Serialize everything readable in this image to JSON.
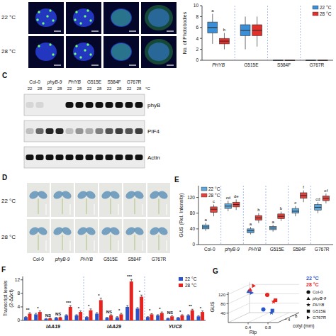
{
  "panel_a": {
    "row_labels": [
      "22 °C",
      "28 °C"
    ]
  },
  "panel_c": {
    "label": "C",
    "genotypes": [
      "Col-0",
      "phyB-9",
      "PHYB",
      "G515E",
      "S584F",
      "G767R"
    ],
    "temps": [
      "22",
      "28"
    ],
    "unit": "°C",
    "bands": [
      {
        "name": "phyB",
        "intensity": [
          0.1,
          0.1,
          0,
          0,
          1,
          1,
          1,
          1,
          1,
          1,
          1,
          1
        ]
      },
      {
        "name": "PIF4",
        "intensity": [
          0.2,
          0.6,
          0.9,
          0.9,
          0.2,
          0.4,
          0.3,
          0.5,
          0.7,
          0.8,
          0.7,
          0.8
        ]
      },
      {
        "name": "Actin",
        "intensity": [
          1,
          1,
          1,
          1,
          1,
          1,
          1,
          1,
          1,
          1,
          1,
          1
        ]
      }
    ]
  },
  "panel_d": {
    "label": "D",
    "row_labels": [
      "22 °C",
      "28 °C"
    ],
    "genotypes": [
      "Col-0",
      "phyB-9",
      "PHYB",
      "G515E",
      "S584F",
      "G767R"
    ]
  },
  "chart_data": [
    {
      "type": "box",
      "y_label": "No. of Photobodies",
      "categories": [
        "PHYB",
        "G515E",
        "S584F",
        "G767R"
      ],
      "series": [
        {
          "name": "22 °C",
          "color": "#3b8fd6",
          "values": [
            6,
            5.5,
            0,
            0
          ],
          "q1": [
            5,
            4.5,
            0,
            0
          ],
          "q3": [
            7,
            6.5,
            0,
            0
          ],
          "min": [
            3,
            2,
            0,
            0
          ],
          "max": [
            8.5,
            8,
            0,
            0
          ],
          "letters": [
            "a",
            null,
            null,
            null
          ]
        },
        {
          "name": "28 °C",
          "color": "#e0302c",
          "values": [
            3.5,
            5.5,
            0,
            0
          ],
          "q1": [
            3,
            4.5,
            0,
            0
          ],
          "q3": [
            4,
            6.5,
            0,
            0
          ],
          "min": [
            2,
            2.5,
            0,
            0
          ],
          "max": [
            5,
            8,
            0,
            0
          ],
          "letters": [
            "b",
            null,
            null,
            null
          ]
        }
      ],
      "ylim": [
        0,
        10
      ],
      "yticks": [
        0,
        2,
        4,
        6,
        8,
        10
      ],
      "legend": "top-right"
    },
    {
      "type": "box",
      "label": "E",
      "y_label": "GUS (Rel. Intensity)",
      "categories": [
        "Col-0",
        "phyB-9",
        "PHYB",
        "G515E",
        "S584F",
        "G767R"
      ],
      "series": [
        {
          "name": "22 °C",
          "color": "#5fa8dc",
          "values": [
            45,
            98,
            35,
            42,
            85,
            95
          ],
          "q1": [
            40,
            92,
            30,
            38,
            80,
            88
          ],
          "q3": [
            50,
            104,
            40,
            46,
            92,
            102
          ],
          "min": [
            35,
            85,
            26,
            33,
            72,
            80
          ],
          "max": [
            55,
            112,
            45,
            50,
            98,
            108
          ],
          "letters": [
            "a",
            "cd",
            "a",
            "a",
            "c",
            "cd"
          ]
        },
        {
          "name": "28 °C",
          "color": "#e3423c",
          "values": [
            90,
            102,
            68,
            72,
            125,
            118
          ],
          "q1": [
            82,
            96,
            62,
            66,
            118,
            112
          ],
          "q3": [
            96,
            108,
            74,
            78,
            132,
            124
          ],
          "min": [
            72,
            88,
            55,
            60,
            108,
            105
          ],
          "max": [
            102,
            115,
            80,
            84,
            138,
            130
          ],
          "letters": [
            "c",
            "de",
            "b",
            "b",
            "f",
            "ef"
          ]
        }
      ],
      "ylim": [
        0,
        150
      ],
      "yticks": [
        0,
        40,
        80,
        120
      ],
      "legend": "top-left"
    },
    {
      "type": "bar",
      "label": "F",
      "y_label": "Transcript levels (2-ΔΔct)",
      "group_labels": [
        "IAA19",
        "IAA29",
        "YUC8"
      ],
      "categories": [
        null,
        null,
        null,
        null,
        null,
        null,
        null,
        null,
        null,
        null,
        null,
        null,
        null,
        null,
        null,
        null,
        null,
        null
      ],
      "series": [
        {
          "name": "22 °C",
          "color": "#2a55c8",
          "values": [
            1.0,
            1.8,
            0.5,
            0.8,
            1.5,
            1.5,
            1.0,
            2.0,
            0.8,
            0.9,
            4.0,
            3.5,
            1.0,
            1.5,
            0.6,
            0.8,
            1.5,
            1.2
          ],
          "errors": [
            0.1,
            0.3,
            0.1,
            0.1,
            0.2,
            0.2,
            0.1,
            0.3,
            0.1,
            0.2,
            0.4,
            0.3,
            0.1,
            0.2,
            0.1,
            0.1,
            0.2,
            0.2
          ]
        },
        {
          "name": "28 °C",
          "color": "#e5231f",
          "values": [
            2.0,
            2.5,
            0.6,
            0.9,
            4.0,
            2.5,
            3.0,
            6.0,
            1.5,
            1.8,
            11.5,
            7.0,
            1.8,
            2.2,
            1.2,
            1.5,
            3.0,
            2.5
          ],
          "errors": [
            0.3,
            0.3,
            0.1,
            0.1,
            0.4,
            0.3,
            0.4,
            0.6,
            0.2,
            0.3,
            0.6,
            0.5,
            0.2,
            0.3,
            0.2,
            0.2,
            0.3,
            0.3
          ]
        }
      ],
      "significance": [
        "**",
        "*",
        "NS",
        "NS",
        "***",
        "*",
        "*",
        "*",
        "NS",
        "*",
        "***",
        "*",
        "*",
        "*",
        "NS",
        "*",
        "**",
        "*"
      ],
      "ylim": [
        0,
        13
      ],
      "yticks": [
        0,
        4,
        8,
        12
      ],
      "legend": "top-right"
    },
    {
      "type": "scatter3d",
      "label": "G",
      "y_label": "GUS",
      "x_label": "Rip",
      "z_label": "cotyl (mm)",
      "xlim": [
        0,
        1
      ],
      "xticks": [
        0.4,
        0.8
      ],
      "ylim": [
        0,
        130
      ],
      "yticks": [
        40,
        80,
        120
      ],
      "zlim": [
        0,
        12
      ],
      "zticks": [
        4,
        8
      ],
      "marker_legend": [
        {
          "name": "Col-0",
          "marker": "circle"
        },
        {
          "name": "phyB-9",
          "marker": "triangle"
        },
        {
          "name": "PHYB",
          "marker": "star"
        },
        {
          "name": "G515E",
          "marker": "square"
        },
        {
          "name": "G767R",
          "marker": "triangle-right"
        }
      ],
      "series": [
        {
          "name": "22 °C",
          "color": "#2a55c8",
          "x": [
            0.6,
            0.05,
            0.8,
            0.8,
            0.15
          ],
          "values": [
            45,
            98,
            35,
            42,
            95
          ],
          "z": [
            3,
            10,
            2,
            2.5,
            9
          ]
        },
        {
          "name": "28 °C",
          "color": "#e5231f",
          "x": [
            0.5,
            0.05,
            0.7,
            0.72,
            0.12
          ],
          "values": [
            90,
            102,
            68,
            72,
            118
          ],
          "z": [
            8,
            11,
            6,
            6.5,
            11
          ]
        }
      ],
      "legend": "right"
    }
  ]
}
